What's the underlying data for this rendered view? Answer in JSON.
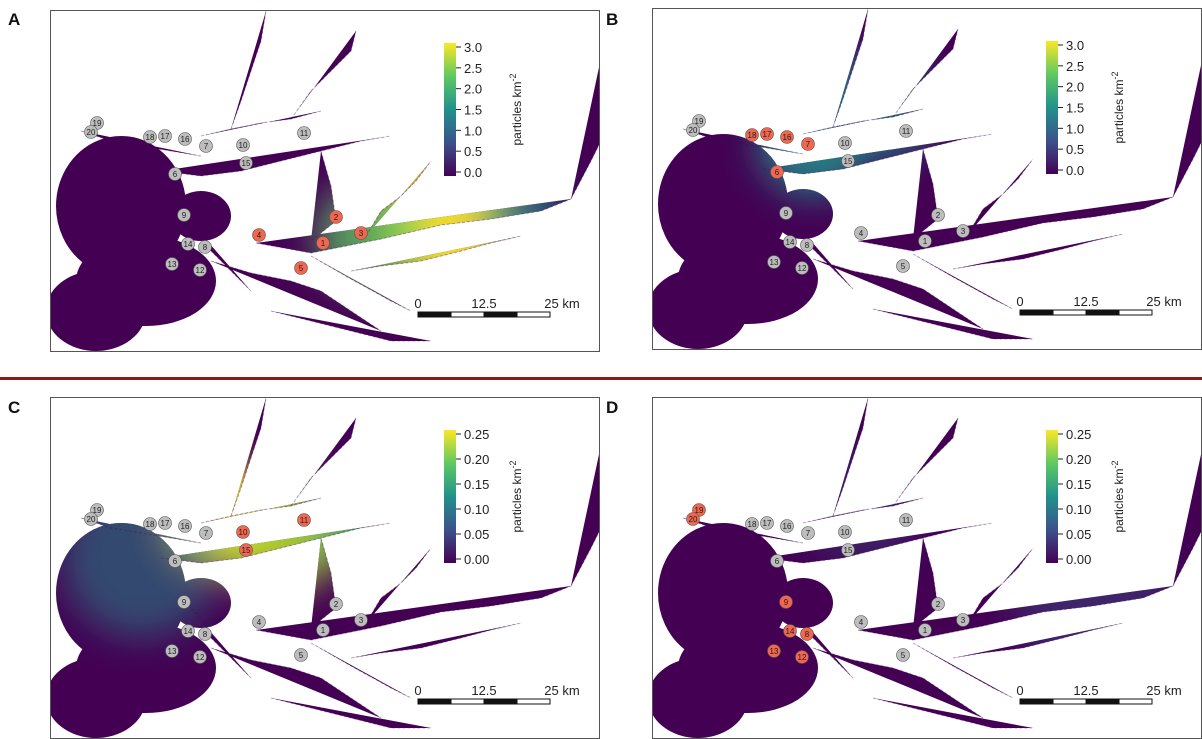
{
  "panels": [
    {
      "id": "A",
      "cbar": "viridis",
      "ticks": [
        "3.0",
        "2.5",
        "2.0",
        "1.5",
        "1.0",
        "0.5",
        "0.0"
      ],
      "title": "particles km",
      "sup": "-2",
      "highlight": [
        1,
        2,
        3,
        4,
        5
      ],
      "heat": "a"
    },
    {
      "id": "B",
      "cbar": "viridis",
      "ticks": [
        "3.0",
        "2.5",
        "2.0",
        "1.5",
        "1.0",
        "0.5",
        "0.0"
      ],
      "title": "particles km",
      "sup": "-2",
      "highlight": [
        6,
        7,
        16,
        17,
        18
      ],
      "heat": "b"
    },
    {
      "id": "C",
      "cbar": "viridis",
      "ticks": [
        "0.25",
        "0.20",
        "0.15",
        "0.10",
        "0.05",
        "0.00"
      ],
      "title": "particles km",
      "sup": "-2",
      "highlight": [
        10,
        11,
        15
      ],
      "heat": "c"
    },
    {
      "id": "D",
      "cbar": "viridis",
      "ticks": [
        "0.25",
        "0.20",
        "0.15",
        "0.10",
        "0.05",
        "0.00"
      ],
      "title": "particles km",
      "sup": "-2",
      "highlight": [
        8,
        9,
        12,
        13,
        14,
        19,
        20
      ],
      "heat": "d"
    }
  ],
  "scalebar": {
    "labels": [
      "0",
      "12.5",
      "25 km"
    ]
  },
  "colors": {
    "land": "#ffffff",
    "water_low": "#440154",
    "water_mid": "#21918c",
    "water_high": "#fde725",
    "marker_grey": "#bdbdbd",
    "marker_red": "#f0664f",
    "divider": "#8b1a1a"
  }
}
